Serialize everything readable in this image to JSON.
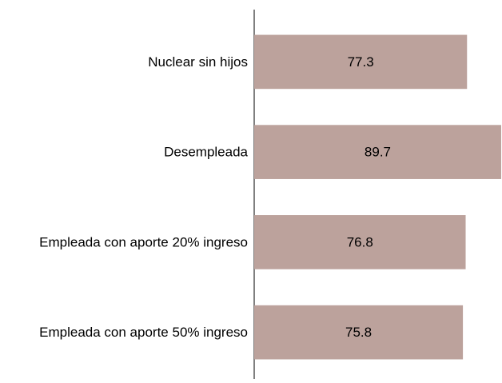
{
  "chart_data": {
    "type": "bar",
    "orientation": "horizontal",
    "categories": [
      "Nuclear sin hijos",
      "Desempleada",
      "Empleada con aporte 20% ingreso",
      "Empleada con aporte 50% ingreso"
    ],
    "values": [
      77.3,
      89.7,
      76.8,
      75.8
    ],
    "color": "#bca29c",
    "xlim": [
      0,
      90
    ]
  }
}
